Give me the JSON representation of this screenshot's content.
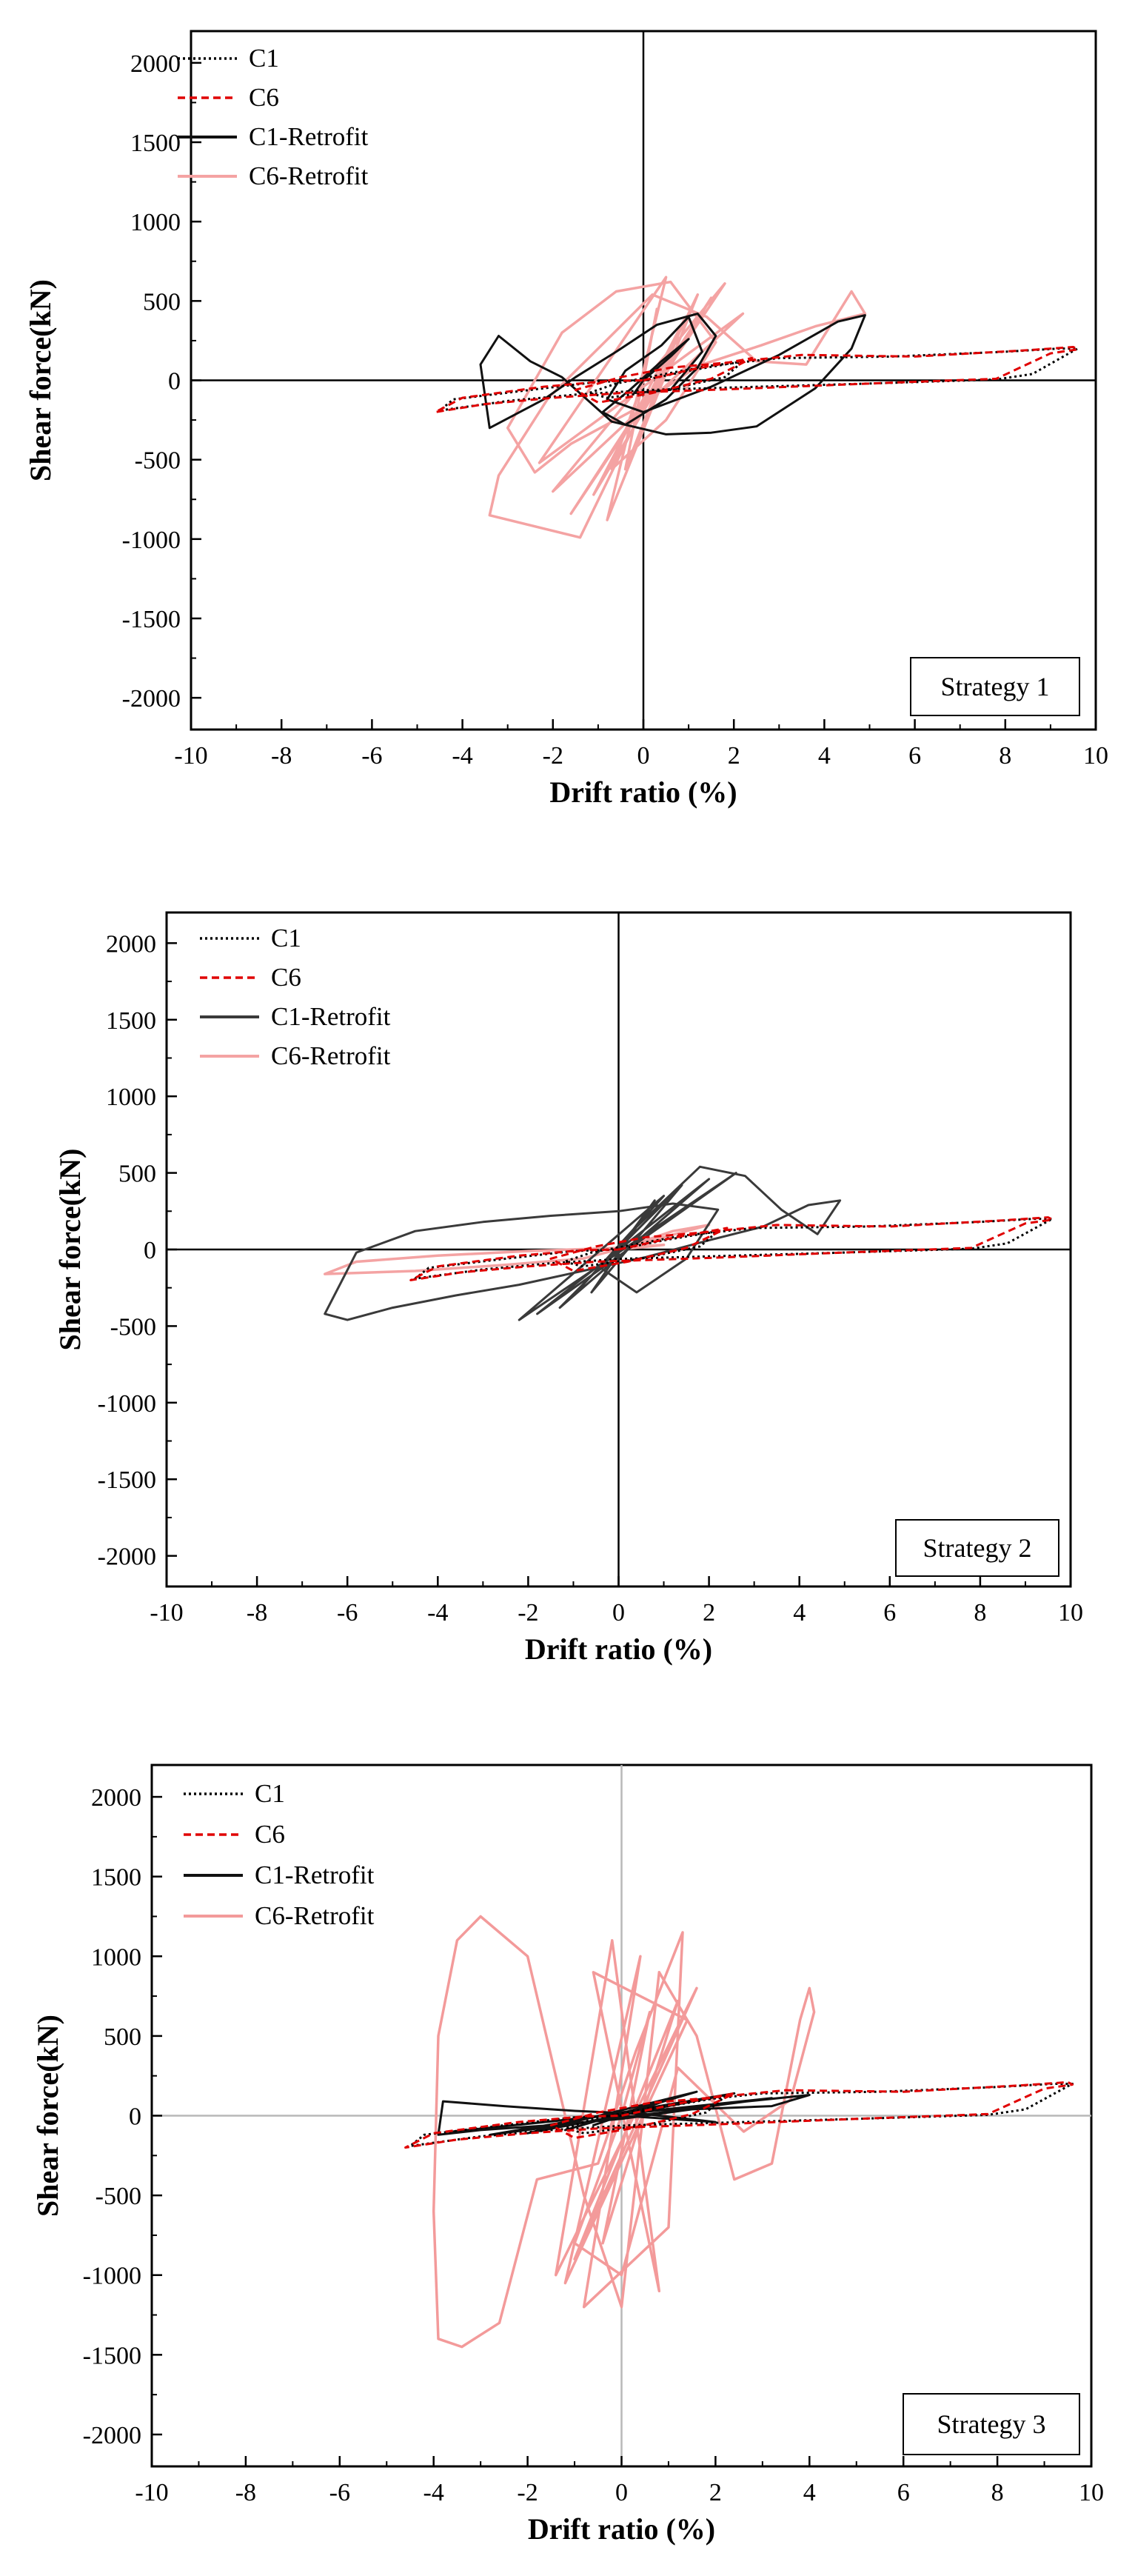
{
  "colors": {
    "c1": "#000000",
    "c6": "#e00000",
    "c1_retrofit": "#111111",
    "c1_retrofit_s2": "#3a3a3a",
    "c6_retrofit": "#f4a3a3",
    "c6_retrofit_s3": "#f39a9a"
  },
  "chart_data": [
    {
      "type": "line",
      "title": "",
      "xlabel": "Drift ratio (%)",
      "ylabel": "Shear force(kN)",
      "xlim": [
        -10,
        10
      ],
      "ylim": [
        -2200,
        2200
      ],
      "xticks": [
        "-10",
        "-8",
        "-6",
        "-4",
        "-2",
        "0",
        "2",
        "4",
        "6",
        "8",
        "10"
      ],
      "yticks": [
        "2000",
        "1500",
        "1000",
        "500",
        "0",
        "-500",
        "-1000",
        "-1500",
        "-2000"
      ],
      "strategy_label": "Strategy 1",
      "legend": [
        "C1",
        "C6",
        "C1-Retrofit",
        "C6-Retrofit"
      ],
      "series": [
        {
          "name": "C1",
          "style": "dotted",
          "x": [
            0,
            1.0,
            2.2,
            1.8,
            0.5,
            -0.8,
            -1.2,
            -0.6,
            0.3,
            1.4,
            3.0,
            5.5,
            8.0,
            9.2,
            9.6,
            9.5,
            8.6,
            7.8,
            5.0,
            2.0,
            0.2,
            -1.5,
            -3.0,
            -4.5,
            -4.2,
            -2.5,
            -1.0,
            0
          ],
          "y": [
            0,
            60,
            120,
            20,
            -60,
            -110,
            -80,
            -20,
            30,
            90,
            140,
            150,
            180,
            200,
            200,
            185,
            40,
            5,
            -20,
            -45,
            -60,
            -90,
            -130,
            -190,
            -120,
            -60,
            -10,
            0
          ]
        },
        {
          "name": "C6",
          "style": "dashed",
          "x": [
            0,
            1.1,
            2.4,
            1.5,
            0.2,
            -1.0,
            -1.5,
            -0.5,
            0.6,
            1.8,
            3.5,
            6.0,
            8.5,
            9.5,
            9.6,
            9.0,
            7.8,
            5.0,
            2.0,
            -0.5,
            -2.0,
            -3.5,
            -4.6,
            -4.0,
            -2.2,
            -0.8,
            0
          ],
          "y": [
            0,
            70,
            140,
            10,
            -80,
            -140,
            -60,
            20,
            80,
            110,
            160,
            150,
            190,
            210,
            195,
            170,
            10,
            -20,
            -55,
            -80,
            -110,
            -150,
            -200,
            -110,
            -40,
            -5,
            0
          ]
        },
        {
          "name": "C1-Retrofit",
          "style": "solid",
          "x": [
            0,
            0.6,
            1.0,
            0.4,
            -0.3,
            -0.9,
            -0.4,
            0.5,
            1.2,
            1.6,
            1.2,
            0.3,
            -0.6,
            -1.5,
            -2.2,
            -3.4,
            -3.6,
            -3.2,
            -2.5,
            -1.8,
            -0.7,
            0.5,
            1.5,
            2.5,
            3.8,
            4.6,
            4.9,
            4.3,
            3.0,
            1.5,
            0.0,
            -0.8,
            -0.4,
            0.4,
            1.0,
            1.3,
            0.6,
            -0.2,
            0
          ],
          "y": [
            0,
            150,
            260,
            120,
            -60,
            -200,
            -280,
            -120,
            80,
            280,
            420,
            350,
            180,
            20,
            -120,
            -300,
            100,
            280,
            120,
            20,
            -260,
            -340,
            -330,
            -290,
            -50,
            200,
            410,
            370,
            160,
            -40,
            -200,
            -120,
            60,
            220,
            400,
            180,
            -60,
            -80,
            0
          ]
        },
        {
          "name": "C6-Retrofit",
          "style": "solid",
          "x": [
            0,
            0.3,
            -0.4,
            0.9,
            -1.1,
            1.5,
            -1.6,
            1.8,
            -2.0,
            2.2,
            -2.3,
            0.5,
            -0.8,
            1.2,
            -1.4,
            -3.4,
            -3.2,
            -2.1,
            -1.0,
            0.2,
            1.4,
            2.5,
            3.6,
            4.6,
            4.9,
            3.8,
            2.6,
            1.2,
            -0.3,
            -1.6,
            -2.4,
            -3.0,
            -1.8,
            -0.6,
            0.6,
            1.6,
            0.5,
            -0.7,
            0
          ],
          "y": [
            0,
            450,
            -560,
            380,
            -720,
            520,
            -840,
            610,
            -700,
            420,
            -520,
            650,
            -880,
            540,
            -990,
            -850,
            -600,
            -110,
            200,
            540,
            400,
            120,
            100,
            560,
            420,
            340,
            220,
            90,
            -200,
            -400,
            -580,
            -300,
            300,
            560,
            620,
            240,
            -250,
            -560,
            0
          ]
        }
      ]
    },
    {
      "type": "line",
      "title": "",
      "xlabel": "Drift ratio (%)",
      "ylabel": "Shear force(kN)",
      "xlim": [
        -10,
        10
      ],
      "ylim": [
        -2200,
        2200
      ],
      "xticks": [
        "-10",
        "-8",
        "-6",
        "-4",
        "-2",
        "0",
        "2",
        "4",
        "6",
        "8",
        "10"
      ],
      "yticks": [
        "2000",
        "1500",
        "1000",
        "500",
        "0",
        "-500",
        "-1000",
        "-1500",
        "-2000"
      ],
      "strategy_label": "Strategy 2",
      "legend": [
        "C1",
        "C6",
        "C1-Retrofit",
        "C6-Retrofit"
      ],
      "series": [
        {
          "name": "C1",
          "style": "dotted",
          "x": [
            0,
            1.0,
            2.2,
            1.8,
            0.5,
            -0.8,
            -1.2,
            -0.6,
            0.3,
            1.4,
            3.0,
            5.5,
            8.0,
            9.2,
            9.6,
            9.5,
            8.6,
            7.8,
            5.0,
            2.0,
            0.2,
            -1.5,
            -3.0,
            -4.5,
            -4.2,
            -2.5,
            -1.0,
            0
          ],
          "y": [
            0,
            60,
            120,
            20,
            -60,
            -110,
            -80,
            -20,
            30,
            90,
            140,
            150,
            180,
            200,
            200,
            185,
            40,
            5,
            -20,
            -45,
            -60,
            -90,
            -130,
            -190,
            -120,
            -60,
            -10,
            0
          ]
        },
        {
          "name": "C6",
          "style": "dashed",
          "x": [
            0,
            1.1,
            2.4,
            1.5,
            0.2,
            -1.0,
            -1.5,
            -0.5,
            0.6,
            1.8,
            3.5,
            6.0,
            8.5,
            9.5,
            9.6,
            9.0,
            7.8,
            5.0,
            2.0,
            -0.5,
            -2.0,
            -3.5,
            -4.6,
            -4.0,
            -2.2,
            -0.8,
            0
          ],
          "y": [
            0,
            70,
            140,
            10,
            -80,
            -140,
            -60,
            20,
            80,
            110,
            160,
            150,
            190,
            210,
            195,
            170,
            10,
            -20,
            -55,
            -80,
            -110,
            -150,
            -200,
            -110,
            -40,
            -5,
            0
          ]
        },
        {
          "name": "C1-Retrofit",
          "style": "solid",
          "x": [
            0,
            0.8,
            -0.6,
            1.4,
            -1.3,
            2.0,
            -1.8,
            2.6,
            -2.2,
            1.0,
            -1.0,
            0.3,
            1.8,
            2.8,
            3.6,
            4.4,
            4.9,
            4.2,
            3.2,
            2.0,
            0.6,
            -0.8,
            -2.2,
            -3.6,
            -5.0,
            -6.0,
            -6.5,
            -5.8,
            -4.5,
            -3.0,
            -1.5,
            0.0,
            1.2,
            2.2,
            1.5,
            0.4,
            -0.4,
            0
          ],
          "y": [
            0,
            320,
            -280,
            420,
            -380,
            460,
            -420,
            500,
            -460,
            350,
            -300,
            120,
            540,
            480,
            260,
            100,
            320,
            290,
            150,
            60,
            -50,
            -140,
            -230,
            -300,
            -380,
            -460,
            -420,
            -20,
            120,
            180,
            220,
            250,
            300,
            260,
            -60,
            -280,
            -120,
            0
          ]
        },
        {
          "name": "C6-Retrofit",
          "style": "solid",
          "x": [
            0,
            1.2,
            2.0,
            0.5,
            -0.8,
            -2.5,
            -4.5,
            -6.5,
            -5.8,
            -4.0,
            -2.0,
            0.0,
            1.0,
            0
          ],
          "y": [
            0,
            120,
            160,
            40,
            -60,
            -100,
            -140,
            -160,
            -80,
            -40,
            -10,
            10,
            30,
            0
          ]
        }
      ]
    },
    {
      "type": "line",
      "title": "",
      "xlabel": "Drift ratio (%)",
      "ylabel": "Shear force(kN)",
      "xlim": [
        -10,
        10
      ],
      "ylim": [
        -2200,
        2200
      ],
      "xticks": [
        "-10",
        "-8",
        "-6",
        "-4",
        "-2",
        "0",
        "2",
        "4",
        "6",
        "8",
        "10"
      ],
      "yticks": [
        "2000",
        "1500",
        "1000",
        "500",
        "0",
        "-500",
        "-1000",
        "-1500",
        "-2000"
      ],
      "strategy_label": "Strategy 3",
      "legend": [
        "C1",
        "C6",
        "C1-Retrofit",
        "C6-Retrofit"
      ],
      "series": [
        {
          "name": "C1",
          "style": "dotted",
          "x": [
            0,
            1.0,
            2.2,
            1.8,
            0.5,
            -0.8,
            -1.2,
            -0.6,
            0.3,
            1.4,
            3.0,
            5.5,
            8.0,
            9.2,
            9.6,
            9.5,
            8.6,
            7.8,
            5.0,
            2.0,
            0.2,
            -1.5,
            -3.0,
            -4.5,
            -4.2,
            -2.5,
            -1.0,
            0
          ],
          "y": [
            0,
            60,
            120,
            20,
            -60,
            -110,
            -80,
            -20,
            30,
            90,
            140,
            150,
            180,
            200,
            200,
            185,
            40,
            5,
            -20,
            -45,
            -60,
            -90,
            -130,
            -190,
            -120,
            -60,
            -10,
            0
          ]
        },
        {
          "name": "C6",
          "style": "dashed",
          "x": [
            0,
            1.1,
            2.4,
            1.5,
            0.2,
            -1.0,
            -1.5,
            -0.5,
            0.6,
            1.8,
            3.5,
            6.0,
            8.5,
            9.5,
            9.6,
            9.0,
            7.8,
            5.0,
            2.0,
            -0.5,
            -2.0,
            -3.5,
            -4.6,
            -4.0,
            -2.2,
            -0.8,
            0
          ],
          "y": [
            0,
            70,
            140,
            10,
            -80,
            -140,
            -60,
            20,
            80,
            110,
            160,
            150,
            190,
            210,
            195,
            170,
            10,
            -20,
            -55,
            -80,
            -110,
            -150,
            -200,
            -110,
            -40,
            -5,
            0
          ]
        },
        {
          "name": "C1-Retrofit",
          "style": "solid",
          "x": [
            0,
            0.8,
            -0.6,
            1.2,
            -1.2,
            1.6,
            -2.0,
            2.4,
            -2.8,
            3.2,
            -3.6,
            4.0,
            3.2,
            1.5,
            0.0,
            -1.5,
            -3.0,
            -3.9,
            -3.8,
            -2.5,
            -1.0,
            0.5,
            2.0,
            1.0,
            0
          ],
          "y": [
            0,
            80,
            -60,
            120,
            -90,
            150,
            -110,
            140,
            -120,
            110,
            -100,
            130,
            60,
            40,
            -20,
            -60,
            -90,
            -120,
            90,
            60,
            30,
            10,
            -40,
            -20,
            0
          ]
        },
        {
          "name": "C6-Retrofit",
          "style": "solid",
          "x": [
            0,
            0.6,
            -0.4,
            1.2,
            -1.0,
            1.6,
            -1.4,
            -0.2,
            0.8,
            -0.6,
            1.4,
            -1.2,
            0.4,
            -0.8,
            1.0,
            1.3,
            0.3,
            -0.5,
            -1.8,
            -2.6,
            -3.4,
            -3.9,
            -4.0,
            -3.9,
            -3.5,
            -3.0,
            -2.0,
            -0.8,
            0.0,
            0.8,
            1.6,
            2.4,
            3.2,
            3.8,
            4.0,
            4.1,
            3.6,
            2.6,
            1.2,
            0.0,
            -1.0,
            0
          ],
          "y": [
            0,
            650,
            -800,
            720,
            -900,
            800,
            -1000,
            1100,
            -1100,
            900,
            600,
            -1050,
            1000,
            -1200,
            -700,
            1150,
            400,
            -300,
            -400,
            -1300,
            -1450,
            -1400,
            -600,
            500,
            1100,
            1250,
            1000,
            -500,
            -1200,
            900,
            500,
            -400,
            -300,
            600,
            800,
            650,
            100,
            -100,
            300,
            -1000,
            -800,
            0
          ]
        }
      ]
    }
  ]
}
